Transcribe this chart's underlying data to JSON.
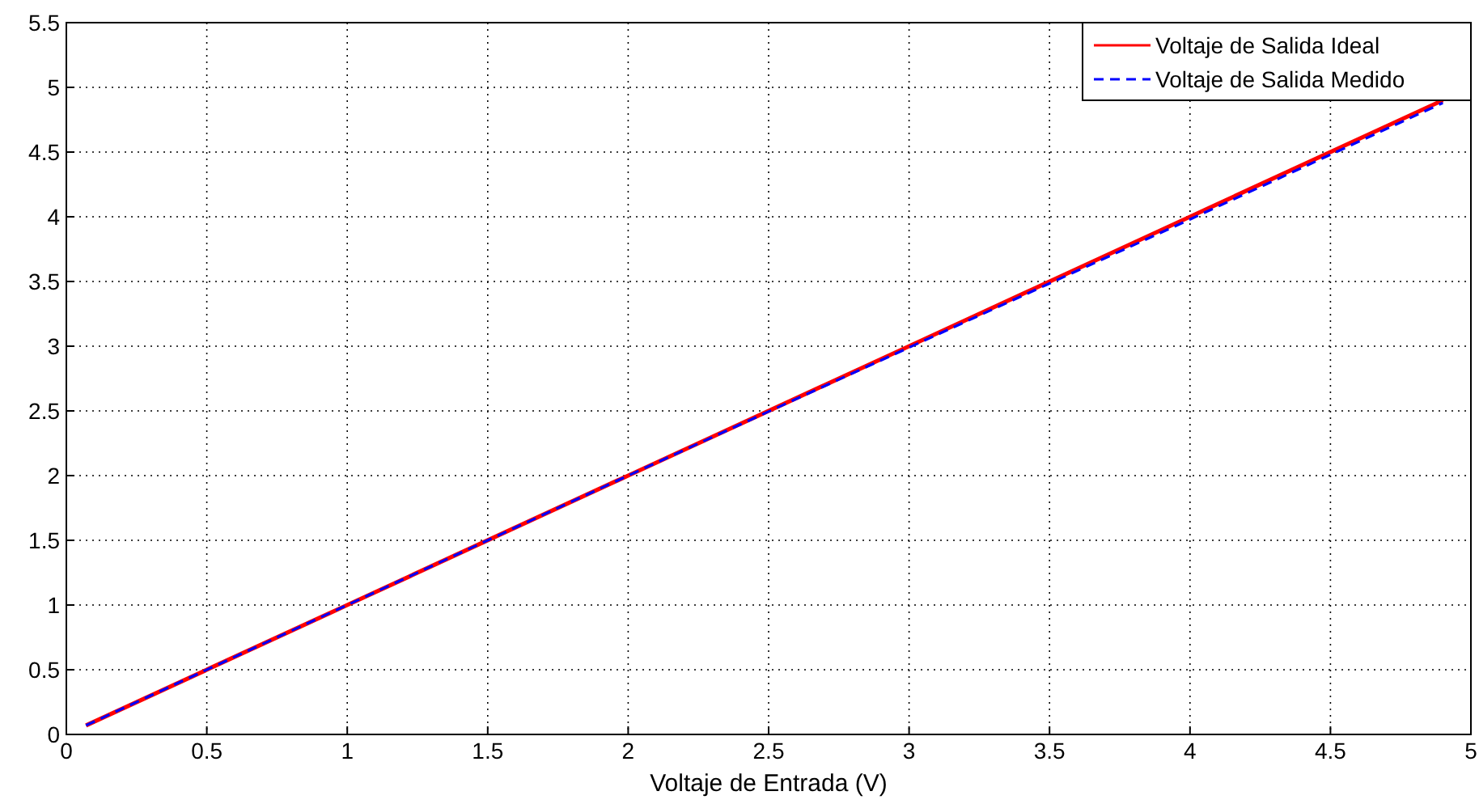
{
  "chart_data": {
    "type": "line",
    "xlabel": "Voltaje de Entrada (V)",
    "xlim": [
      0,
      5
    ],
    "ylim": [
      0,
      5.5
    ],
    "xticks": [
      0,
      0.5,
      1,
      1.5,
      2,
      2.5,
      3,
      3.5,
      4,
      4.5,
      5
    ],
    "yticks": [
      0,
      0.5,
      1,
      1.5,
      2,
      2.5,
      3,
      3.5,
      4,
      4.5,
      5,
      5.5
    ],
    "grid": true,
    "legend": "top right",
    "series": [
      {
        "name": "Voltaje de Salida Ideal",
        "color": "#ff0000",
        "line_style": "solid",
        "x": [
          0.07,
          1,
          2,
          3,
          4,
          4.9
        ],
        "values": [
          0.07,
          1,
          2,
          3,
          4,
          4.9
        ]
      },
      {
        "name": "Voltaje de Salida Medido",
        "color": "#0000ff",
        "line_style": "dashed",
        "x": [
          0.07,
          1,
          2,
          3,
          4,
          4.9
        ],
        "values": [
          0.07,
          1,
          2,
          2.99,
          3.98,
          4.88
        ]
      }
    ]
  }
}
